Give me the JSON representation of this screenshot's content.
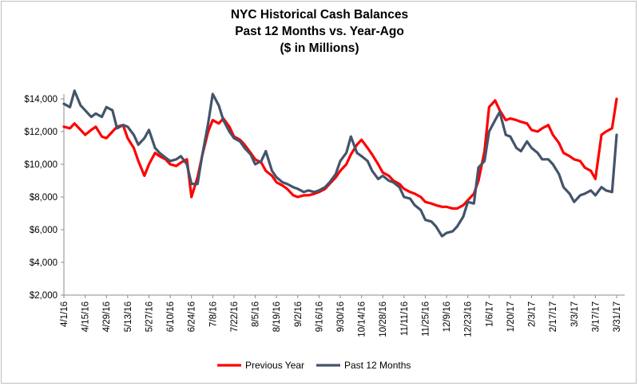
{
  "chart_data": {
    "type": "line",
    "title": [
      "NYC Historical Cash Balances",
      "Past 12 Months vs. Year-Ago",
      "($ in Millions)"
    ],
    "xlabel": "",
    "ylabel": "",
    "ylim": [
      2000,
      14000
    ],
    "y_ticks": [
      "$2,000",
      "$4,000",
      "$6,000",
      "$8,000",
      "$10,000",
      "$12,000",
      "$14,000"
    ],
    "y_tick_values": [
      2000,
      4000,
      6000,
      8000,
      10000,
      12000,
      14000
    ],
    "x_ticks": [
      "4/1/16",
      "4/15/16",
      "4/29/16",
      "5/13/16",
      "5/27/16",
      "6/10/16",
      "6/24/16",
      "7/8/16",
      "7/22/16",
      "8/5/16",
      "8/19/16",
      "9/2/16",
      "9/16/16",
      "9/30/16",
      "10/14/16",
      "10/28/16",
      "11/11/16",
      "11/25/16",
      "12/9/16",
      "12/23/16",
      "1/6/17",
      "1/20/17",
      "2/3/17",
      "2/17/17",
      "3/3/17",
      "3/17/17",
      "3/31/17"
    ],
    "grid": false,
    "legend_position": "bottom",
    "series": [
      {
        "name": "Previous Year",
        "color": "#ff0000",
        "x": [
          "4/1/16",
          "4/5/16",
          "4/8/16",
          "4/12/16",
          "4/15/16",
          "4/19/16",
          "4/22/16",
          "4/26/16",
          "4/29/16",
          "5/3/16",
          "5/6/16",
          "5/10/16",
          "5/13/16",
          "5/17/16",
          "5/20/16",
          "5/24/16",
          "5/27/16",
          "5/31/16",
          "6/3/16",
          "6/7/16",
          "6/10/16",
          "6/14/16",
          "6/17/16",
          "6/21/16",
          "6/24/16",
          "6/28/16",
          "7/1/16",
          "7/5/16",
          "7/8/16",
          "7/12/16",
          "7/15/16",
          "7/19/16",
          "7/22/16",
          "7/26/16",
          "7/29/16",
          "8/2/16",
          "8/5/16",
          "8/9/16",
          "8/12/16",
          "8/16/16",
          "8/19/16",
          "8/23/16",
          "8/26/16",
          "8/30/16",
          "9/2/16",
          "9/6/16",
          "9/9/16",
          "9/13/16",
          "9/16/16",
          "9/20/16",
          "9/23/16",
          "9/27/16",
          "9/30/16",
          "10/4/16",
          "10/7/16",
          "10/11/16",
          "10/14/16",
          "10/18/16",
          "10/21/16",
          "10/25/16",
          "10/28/16",
          "11/1/16",
          "11/4/16",
          "11/8/16",
          "11/11/16",
          "11/15/16",
          "11/18/16",
          "11/22/16",
          "11/25/16",
          "11/29/16",
          "12/2/16",
          "12/6/16",
          "12/9/16",
          "12/13/16",
          "12/16/16",
          "12/20/16",
          "12/23/16",
          "12/27/16",
          "12/30/16",
          "1/3/17",
          "1/6/17",
          "1/10/17",
          "1/13/17",
          "1/17/17",
          "1/20/17",
          "1/24/17",
          "1/27/17",
          "1/31/17",
          "2/3/17",
          "2/7/17",
          "2/10/17",
          "2/14/17",
          "2/17/17",
          "2/21/17",
          "2/24/17",
          "2/28/17",
          "3/3/17",
          "3/7/17",
          "3/10/17",
          "3/14/17",
          "3/17/17",
          "3/21/17",
          "3/24/17",
          "3/28/17",
          "3/31/17"
        ],
        "values": [
          12300,
          12200,
          12500,
          12100,
          11800,
          12100,
          12300,
          11700,
          11600,
          12000,
          12300,
          12400,
          11600,
          11000,
          10200,
          9300,
          10000,
          10700,
          10500,
          10300,
          10000,
          9900,
          10100,
          10300,
          8000,
          9200,
          10500,
          12000,
          12700,
          12500,
          12800,
          12300,
          11700,
          11500,
          11200,
          10700,
          10300,
          10100,
          9600,
          9300,
          8900,
          8700,
          8500,
          8100,
          8000,
          8100,
          8100,
          8200,
          8300,
          8500,
          8800,
          9200,
          9600,
          10000,
          10600,
          11200,
          11500,
          11000,
          10600,
          10000,
          9500,
          9300,
          9000,
          8800,
          8500,
          8300,
          8200,
          8000,
          7700,
          7600,
          7500,
          7400,
          7400,
          7300,
          7300,
          7500,
          7800,
          8200,
          9000,
          10800,
          13500,
          13900,
          13300,
          12700,
          12800,
          12700,
          12600,
          12500,
          12100,
          12000,
          12200,
          12400,
          11800,
          11300,
          10700,
          10500,
          10300,
          10200,
          9800,
          9600,
          9100,
          11800,
          12000,
          12200,
          14000
        ]
      },
      {
        "name": "Past 12 Months",
        "color": "#44546a",
        "x": [
          "4/1/16",
          "4/5/16",
          "4/8/16",
          "4/12/16",
          "4/15/16",
          "4/19/16",
          "4/22/16",
          "4/26/16",
          "4/29/16",
          "5/3/16",
          "5/6/16",
          "5/10/16",
          "5/13/16",
          "5/17/16",
          "5/20/16",
          "5/24/16",
          "5/27/16",
          "5/31/16",
          "6/3/16",
          "6/7/16",
          "6/10/16",
          "6/14/16",
          "6/17/16",
          "6/21/16",
          "6/24/16",
          "6/28/16",
          "7/1/16",
          "7/5/16",
          "7/8/16",
          "7/12/16",
          "7/15/16",
          "7/19/16",
          "7/22/16",
          "7/26/16",
          "7/29/16",
          "8/2/16",
          "8/5/16",
          "8/9/16",
          "8/12/16",
          "8/16/16",
          "8/19/16",
          "8/23/16",
          "8/26/16",
          "8/30/16",
          "9/2/16",
          "9/6/16",
          "9/9/16",
          "9/13/16",
          "9/16/16",
          "9/20/16",
          "9/23/16",
          "9/27/16",
          "9/30/16",
          "10/4/16",
          "10/7/16",
          "10/11/16",
          "10/14/16",
          "10/18/16",
          "10/21/16",
          "10/25/16",
          "10/28/16",
          "11/1/16",
          "11/4/16",
          "11/8/16",
          "11/11/16",
          "11/15/16",
          "11/18/16",
          "11/22/16",
          "11/25/16",
          "11/29/16",
          "12/2/16",
          "12/6/16",
          "12/9/16",
          "12/13/16",
          "12/16/16",
          "12/20/16",
          "12/23/16",
          "12/27/16",
          "12/30/16",
          "1/3/17",
          "1/6/17",
          "1/10/17",
          "1/13/17",
          "1/17/17",
          "1/20/17",
          "1/24/17",
          "1/27/17",
          "1/31/17",
          "2/3/17",
          "2/7/17",
          "2/10/17",
          "2/14/17",
          "2/17/17",
          "2/21/17",
          "2/24/17",
          "2/28/17",
          "3/3/17",
          "3/7/17",
          "3/10/17",
          "3/14/17",
          "3/17/17",
          "3/21/17",
          "3/24/17",
          "3/28/17",
          "3/31/17"
        ],
        "values": [
          13700,
          13500,
          14500,
          13600,
          13300,
          12900,
          13100,
          12900,
          13500,
          13300,
          12200,
          12400,
          12300,
          11800,
          11200,
          11600,
          12100,
          11000,
          10700,
          10400,
          10200,
          10300,
          10500,
          10000,
          8800,
          8800,
          10500,
          12500,
          14300,
          13600,
          12700,
          12000,
          11600,
          11400,
          11000,
          10600,
          10000,
          10200,
          10800,
          9600,
          9200,
          8900,
          8800,
          8600,
          8500,
          8300,
          8400,
          8300,
          8400,
          8600,
          8900,
          9400,
          10200,
          10700,
          11700,
          10700,
          10500,
          10200,
          9600,
          9100,
          9300,
          9000,
          8900,
          8600,
          8000,
          7900,
          7500,
          7200,
          6600,
          6500,
          6200,
          5600,
          5800,
          5900,
          6200,
          6800,
          7700,
          7600,
          9800,
          10200,
          12000,
          12700,
          13200,
          11800,
          11700,
          11000,
          10800,
          11400,
          11000,
          10700,
          10300,
          10300,
          10000,
          9400,
          8600,
          8200,
          7700,
          8100,
          8200,
          8400,
          8100,
          8600,
          8400,
          8300,
          11800
        ]
      }
    ]
  }
}
